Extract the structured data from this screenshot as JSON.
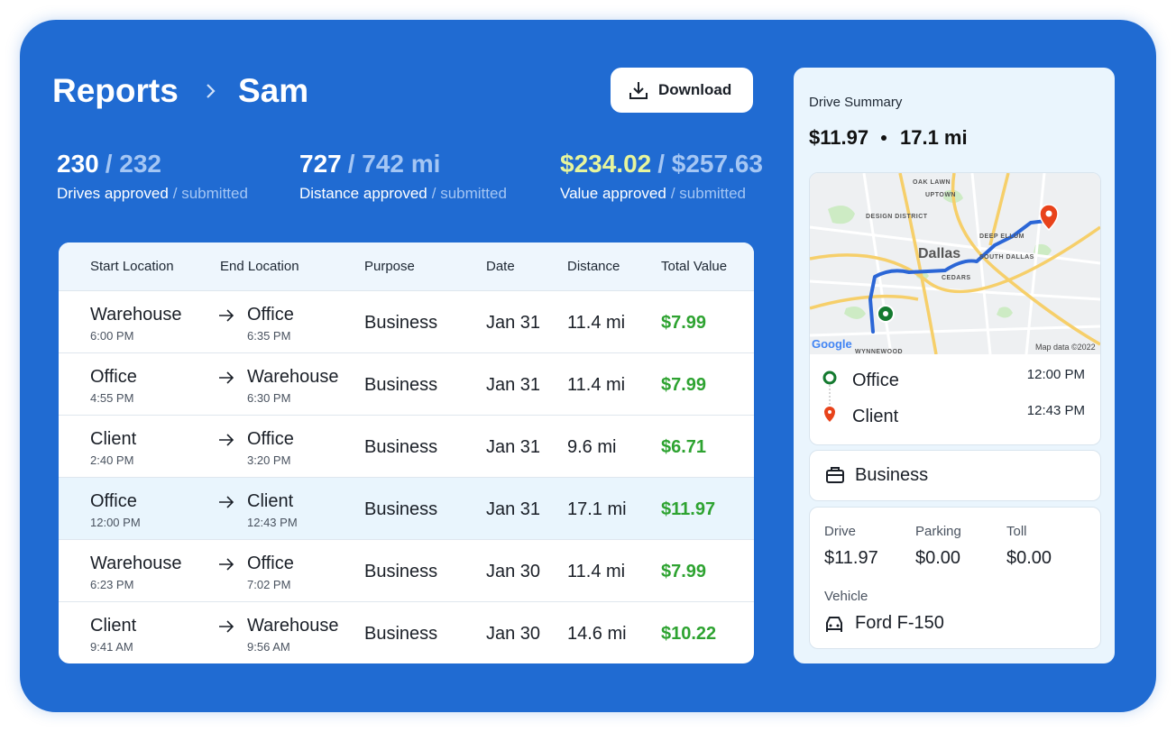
{
  "breadcrumb": [
    "Reports",
    "Sam"
  ],
  "download": "Download",
  "stats": [
    {
      "approved": "230",
      "submitted": "/ 232",
      "label": "Drives approved",
      "label_submitted": "/ submitted"
    },
    {
      "approved": "727",
      "submitted": "/ 742 mi",
      "label": "Distance approved",
      "label_submitted": "/ submitted"
    },
    {
      "approved": "$234.02",
      "submitted": "/ $257.63",
      "label": "Value approved",
      "label_submitted": "/ submitted"
    }
  ],
  "table": {
    "columns": [
      "Start Location",
      "End Location",
      "Purpose",
      "Date",
      "Distance",
      "Total Value"
    ],
    "selected_row": 3,
    "rows": [
      {
        "start": "Warehouse",
        "start_time": "6:00 PM",
        "end": "Office",
        "end_time": "6:35 PM",
        "purpose": "Business",
        "date": "Jan 31",
        "distance": "11.4 mi",
        "value": "$7.99"
      },
      {
        "start": "Office",
        "start_time": "4:55 PM",
        "end": "Warehouse",
        "end_time": "6:30 PM",
        "purpose": "Business",
        "date": "Jan 31",
        "distance": "11.4 mi",
        "value": "$7.99"
      },
      {
        "start": "Client",
        "start_time": "2:40 PM",
        "end": "Office",
        "end_time": "3:20 PM",
        "purpose": "Business",
        "date": "Jan 31",
        "distance": "9.6 mi",
        "value": "$6.71"
      },
      {
        "start": "Office",
        "start_time": "12:00 PM",
        "end": "Client",
        "end_time": "12:43 PM",
        "purpose": "Business",
        "date": "Jan 31",
        "distance": "17.1 mi",
        "value": "$11.97"
      },
      {
        "start": "Warehouse",
        "start_time": "6:23 PM",
        "end": "Office",
        "end_time": "7:02 PM",
        "purpose": "Business",
        "date": "Jan 30",
        "distance": "11.4 mi",
        "value": "$7.99"
      },
      {
        "start": "Client",
        "start_time": "9:41 AM",
        "end": "Warehouse",
        "end_time": "9:56 AM",
        "purpose": "Business",
        "date": "Jan 30",
        "distance": "14.6 mi",
        "value": "$10.22"
      }
    ]
  },
  "summary": {
    "title": "Drive Summary",
    "amount": "$11.97",
    "distance": "17.1 mi",
    "map_labels": [
      "OAK LAWN",
      "UPTOWN",
      "DESIGN DISTRICT",
      "Dallas",
      "DEEP ELLUM",
      "SOUTH DALLAS",
      "CEDARS",
      "WYNNEWOOD"
    ],
    "map_brand": "Google",
    "map_credit": "Map data ©2022",
    "stops": [
      {
        "name": "Office",
        "time": "12:00 PM"
      },
      {
        "name": "Client",
        "time": "12:43 PM"
      }
    ],
    "purpose": "Business",
    "costs": [
      {
        "label": "Drive",
        "value": "$11.97"
      },
      {
        "label": "Parking",
        "value": "$0.00"
      },
      {
        "label": "Toll",
        "value": "$0.00"
      }
    ],
    "vehicle_label": "Vehicle",
    "vehicle": "Ford F-150"
  }
}
